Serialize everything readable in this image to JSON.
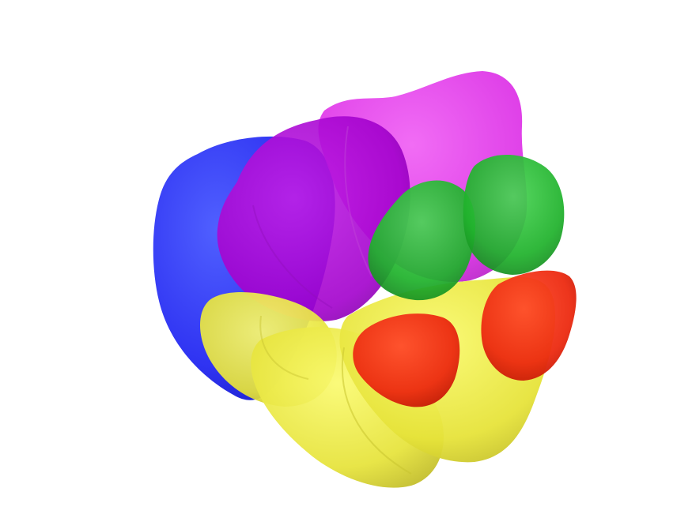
{
  "scene": {
    "background": "#ffffff",
    "blobs": [
      {
        "name": "blue-blob",
        "color": "#3333ff"
      },
      {
        "name": "magenta-blob-rear",
        "color": "#e034e8"
      },
      {
        "name": "magenta-blob-front",
        "color": "#b000d8"
      },
      {
        "name": "green-blob-left",
        "color": "#22b830"
      },
      {
        "name": "green-blob-right",
        "color": "#22b830"
      },
      {
        "name": "yellow-blob-left",
        "color": "#e0dc3a"
      },
      {
        "name": "yellow-blob-middle",
        "color": "#ecea38"
      },
      {
        "name": "yellow-blob-right",
        "color": "#f2ee30"
      },
      {
        "name": "red-blob-left",
        "color": "#ee2a10"
      },
      {
        "name": "red-blob-right",
        "color": "#ee2a10"
      }
    ]
  }
}
